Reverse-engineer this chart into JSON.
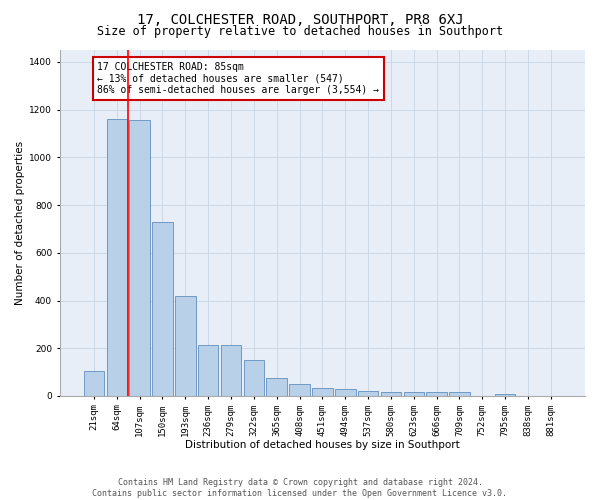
{
  "title": "17, COLCHESTER ROAD, SOUTHPORT, PR8 6XJ",
  "subtitle": "Size of property relative to detached houses in Southport",
  "xlabel": "Distribution of detached houses by size in Southport",
  "ylabel": "Number of detached properties",
  "categories": [
    "21sqm",
    "64sqm",
    "107sqm",
    "150sqm",
    "193sqm",
    "236sqm",
    "279sqm",
    "322sqm",
    "365sqm",
    "408sqm",
    "451sqm",
    "494sqm",
    "537sqm",
    "580sqm",
    "623sqm",
    "666sqm",
    "709sqm",
    "752sqm",
    "795sqm",
    "838sqm",
    "881sqm"
  ],
  "values": [
    105,
    1160,
    1155,
    730,
    420,
    215,
    215,
    150,
    75,
    50,
    35,
    30,
    20,
    15,
    15,
    15,
    15,
    0,
    10,
    0,
    0
  ],
  "bar_color": "#b8d0e8",
  "bar_edge_color": "#6090c0",
  "red_line_x": 1.5,
  "annotation_text": "17 COLCHESTER ROAD: 85sqm\n← 13% of detached houses are smaller (547)\n86% of semi-detached houses are larger (3,554) →",
  "annotation_box_color": "white",
  "annotation_box_edge_color": "#cc0000",
  "ylim": [
    0,
    1450
  ],
  "yticks": [
    0,
    200,
    400,
    600,
    800,
    1000,
    1200,
    1400
  ],
  "grid_color": "#c8d4e4",
  "background_color": "#e8eef8",
  "footer_text": "Contains HM Land Registry data © Crown copyright and database right 2024.\nContains public sector information licensed under the Open Government Licence v3.0.",
  "title_fontsize": 10,
  "subtitle_fontsize": 8.5,
  "axis_label_fontsize": 7.5,
  "tick_fontsize": 6.5,
  "annotation_fontsize": 7,
  "footer_fontsize": 6
}
